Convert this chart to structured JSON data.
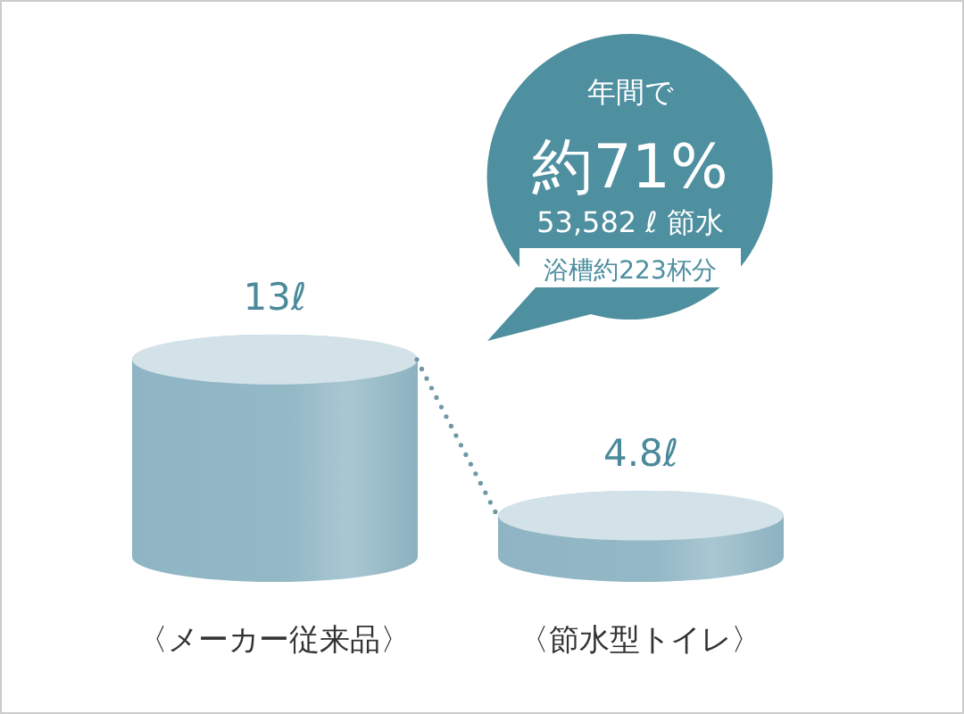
{
  "chart_data": {
    "type": "bar",
    "categories": [
      "〈メーカー従来品〉",
      "〈節水型トイレ〉"
    ],
    "values": [
      13,
      4.8
    ],
    "value_labels": [
      "13ℓ",
      "4.8ℓ"
    ],
    "color": "#93b8c6",
    "annotations": [
      "年間で",
      "約71%",
      "53,582 ℓ 節水",
      "浴槽約223杯分"
    ]
  }
}
